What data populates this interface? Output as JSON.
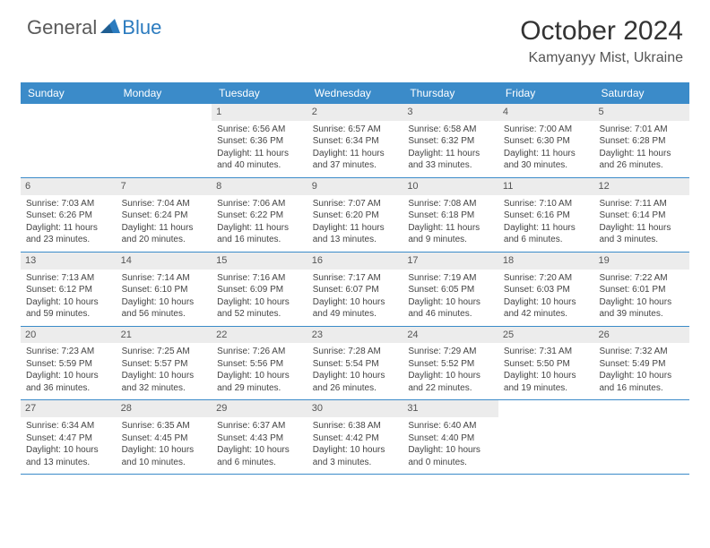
{
  "logo": {
    "part1": "General",
    "part2": "Blue"
  },
  "title": "October 2024",
  "location": "Kamyanyy Mist, Ukraine",
  "colors": {
    "header_bg": "#3b8bc9",
    "header_text": "#ffffff",
    "daynum_bg": "#ececec",
    "border": "#3b8bc9",
    "logo_gray": "#5a5a5a",
    "logo_blue": "#2b7bbf",
    "text": "#444444"
  },
  "day_labels": [
    "Sunday",
    "Monday",
    "Tuesday",
    "Wednesday",
    "Thursday",
    "Friday",
    "Saturday"
  ],
  "weeks": [
    [
      {
        "n": "",
        "sr": "",
        "ss": "",
        "dl": ""
      },
      {
        "n": "",
        "sr": "",
        "ss": "",
        "dl": ""
      },
      {
        "n": "1",
        "sr": "Sunrise: 6:56 AM",
        "ss": "Sunset: 6:36 PM",
        "dl": "Daylight: 11 hours and 40 minutes."
      },
      {
        "n": "2",
        "sr": "Sunrise: 6:57 AM",
        "ss": "Sunset: 6:34 PM",
        "dl": "Daylight: 11 hours and 37 minutes."
      },
      {
        "n": "3",
        "sr": "Sunrise: 6:58 AM",
        "ss": "Sunset: 6:32 PM",
        "dl": "Daylight: 11 hours and 33 minutes."
      },
      {
        "n": "4",
        "sr": "Sunrise: 7:00 AM",
        "ss": "Sunset: 6:30 PM",
        "dl": "Daylight: 11 hours and 30 minutes."
      },
      {
        "n": "5",
        "sr": "Sunrise: 7:01 AM",
        "ss": "Sunset: 6:28 PM",
        "dl": "Daylight: 11 hours and 26 minutes."
      }
    ],
    [
      {
        "n": "6",
        "sr": "Sunrise: 7:03 AM",
        "ss": "Sunset: 6:26 PM",
        "dl": "Daylight: 11 hours and 23 minutes."
      },
      {
        "n": "7",
        "sr": "Sunrise: 7:04 AM",
        "ss": "Sunset: 6:24 PM",
        "dl": "Daylight: 11 hours and 20 minutes."
      },
      {
        "n": "8",
        "sr": "Sunrise: 7:06 AM",
        "ss": "Sunset: 6:22 PM",
        "dl": "Daylight: 11 hours and 16 minutes."
      },
      {
        "n": "9",
        "sr": "Sunrise: 7:07 AM",
        "ss": "Sunset: 6:20 PM",
        "dl": "Daylight: 11 hours and 13 minutes."
      },
      {
        "n": "10",
        "sr": "Sunrise: 7:08 AM",
        "ss": "Sunset: 6:18 PM",
        "dl": "Daylight: 11 hours and 9 minutes."
      },
      {
        "n": "11",
        "sr": "Sunrise: 7:10 AM",
        "ss": "Sunset: 6:16 PM",
        "dl": "Daylight: 11 hours and 6 minutes."
      },
      {
        "n": "12",
        "sr": "Sunrise: 7:11 AM",
        "ss": "Sunset: 6:14 PM",
        "dl": "Daylight: 11 hours and 3 minutes."
      }
    ],
    [
      {
        "n": "13",
        "sr": "Sunrise: 7:13 AM",
        "ss": "Sunset: 6:12 PM",
        "dl": "Daylight: 10 hours and 59 minutes."
      },
      {
        "n": "14",
        "sr": "Sunrise: 7:14 AM",
        "ss": "Sunset: 6:10 PM",
        "dl": "Daylight: 10 hours and 56 minutes."
      },
      {
        "n": "15",
        "sr": "Sunrise: 7:16 AM",
        "ss": "Sunset: 6:09 PM",
        "dl": "Daylight: 10 hours and 52 minutes."
      },
      {
        "n": "16",
        "sr": "Sunrise: 7:17 AM",
        "ss": "Sunset: 6:07 PM",
        "dl": "Daylight: 10 hours and 49 minutes."
      },
      {
        "n": "17",
        "sr": "Sunrise: 7:19 AM",
        "ss": "Sunset: 6:05 PM",
        "dl": "Daylight: 10 hours and 46 minutes."
      },
      {
        "n": "18",
        "sr": "Sunrise: 7:20 AM",
        "ss": "Sunset: 6:03 PM",
        "dl": "Daylight: 10 hours and 42 minutes."
      },
      {
        "n": "19",
        "sr": "Sunrise: 7:22 AM",
        "ss": "Sunset: 6:01 PM",
        "dl": "Daylight: 10 hours and 39 minutes."
      }
    ],
    [
      {
        "n": "20",
        "sr": "Sunrise: 7:23 AM",
        "ss": "Sunset: 5:59 PM",
        "dl": "Daylight: 10 hours and 36 minutes."
      },
      {
        "n": "21",
        "sr": "Sunrise: 7:25 AM",
        "ss": "Sunset: 5:57 PM",
        "dl": "Daylight: 10 hours and 32 minutes."
      },
      {
        "n": "22",
        "sr": "Sunrise: 7:26 AM",
        "ss": "Sunset: 5:56 PM",
        "dl": "Daylight: 10 hours and 29 minutes."
      },
      {
        "n": "23",
        "sr": "Sunrise: 7:28 AM",
        "ss": "Sunset: 5:54 PM",
        "dl": "Daylight: 10 hours and 26 minutes."
      },
      {
        "n": "24",
        "sr": "Sunrise: 7:29 AM",
        "ss": "Sunset: 5:52 PM",
        "dl": "Daylight: 10 hours and 22 minutes."
      },
      {
        "n": "25",
        "sr": "Sunrise: 7:31 AM",
        "ss": "Sunset: 5:50 PM",
        "dl": "Daylight: 10 hours and 19 minutes."
      },
      {
        "n": "26",
        "sr": "Sunrise: 7:32 AM",
        "ss": "Sunset: 5:49 PM",
        "dl": "Daylight: 10 hours and 16 minutes."
      }
    ],
    [
      {
        "n": "27",
        "sr": "Sunrise: 6:34 AM",
        "ss": "Sunset: 4:47 PM",
        "dl": "Daylight: 10 hours and 13 minutes."
      },
      {
        "n": "28",
        "sr": "Sunrise: 6:35 AM",
        "ss": "Sunset: 4:45 PM",
        "dl": "Daylight: 10 hours and 10 minutes."
      },
      {
        "n": "29",
        "sr": "Sunrise: 6:37 AM",
        "ss": "Sunset: 4:43 PM",
        "dl": "Daylight: 10 hours and 6 minutes."
      },
      {
        "n": "30",
        "sr": "Sunrise: 6:38 AM",
        "ss": "Sunset: 4:42 PM",
        "dl": "Daylight: 10 hours and 3 minutes."
      },
      {
        "n": "31",
        "sr": "Sunrise: 6:40 AM",
        "ss": "Sunset: 4:40 PM",
        "dl": "Daylight: 10 hours and 0 minutes."
      },
      {
        "n": "",
        "sr": "",
        "ss": "",
        "dl": ""
      },
      {
        "n": "",
        "sr": "",
        "ss": "",
        "dl": ""
      }
    ]
  ]
}
